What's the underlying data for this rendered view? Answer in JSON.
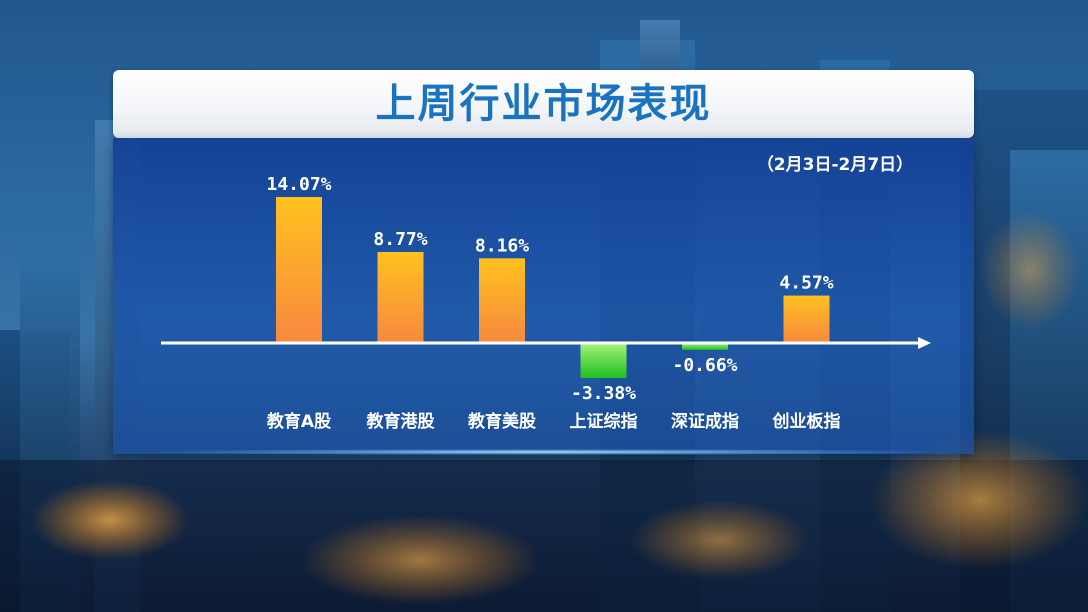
{
  "title": "上周行业市场表现",
  "date_range": "（2月3日-2月7日）",
  "colors": {
    "positive_bar_top": "#ffc11f",
    "positive_bar_bottom": "#f7893f",
    "negative_bar_top": "#a6f37a",
    "negative_bar_bottom": "#1ebf1e",
    "axis": "#ffffff",
    "title": "#1a73c1"
  },
  "chart_data": {
    "type": "bar",
    "categories": [
      "教育A股",
      "教育港股",
      "教育美股",
      "上证综指",
      "深证成指",
      "创业板指"
    ],
    "values": [
      14.07,
      8.77,
      8.16,
      -3.38,
      -0.66,
      4.57
    ],
    "value_labels": [
      "14.07%",
      "8.77%",
      "8.16%",
      "-3.38%",
      "-0.66%",
      "4.57%"
    ],
    "ylim": [
      -4,
      15
    ],
    "grid": false,
    "legend": "none"
  }
}
